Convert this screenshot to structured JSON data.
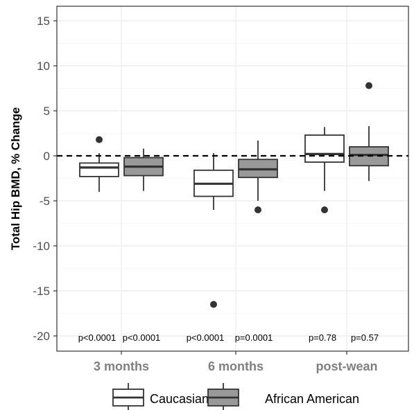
{
  "chart_data": {
    "type": "box",
    "ylabel": "Total Hip BMD, % Change",
    "xlabel": "",
    "ylim": [
      -21.5,
      16.5
    ],
    "yticks": [
      -20,
      -15,
      -10,
      -5,
      0,
      5,
      10,
      15
    ],
    "reference_line": {
      "y": 0,
      "style": "dashed"
    },
    "categories": [
      "3 months",
      "6 months",
      "post-wean"
    ],
    "series": [
      {
        "name": "Caucasian",
        "fill": "#ffffff"
      },
      {
        "name": "African American",
        "fill": "#999999"
      }
    ],
    "boxes": [
      {
        "category": "3 months",
        "series": "Caucasian",
        "whisker_low": -4.0,
        "q1": -2.3,
        "median": -1.3,
        "q3": -0.8,
        "whisker_high": 0.3,
        "outliers": [
          1.8
        ]
      },
      {
        "category": "3 months",
        "series": "African American",
        "whisker_low": -3.9,
        "q1": -2.2,
        "median": -1.2,
        "q3": -0.2,
        "whisker_high": 0.8,
        "outliers": []
      },
      {
        "category": "6 months",
        "series": "Caucasian",
        "whisker_low": -6.0,
        "q1": -4.5,
        "median": -3.1,
        "q3": -1.6,
        "whisker_high": 0.3,
        "outliers": [
          -16.5
        ]
      },
      {
        "category": "6 months",
        "series": "African American",
        "whisker_low": -5.0,
        "q1": -2.4,
        "median": -1.5,
        "q3": -0.4,
        "whisker_high": 1.7,
        "outliers": [
          -6.0
        ]
      },
      {
        "category": "post-wean",
        "series": "Caucasian",
        "whisker_low": -3.9,
        "q1": -0.7,
        "median": 0.2,
        "q3": 2.3,
        "whisker_high": 3.2,
        "outliers": [
          -6.0
        ]
      },
      {
        "category": "post-wean",
        "series": "African American",
        "whisker_low": -2.8,
        "q1": -1.1,
        "median": 0.1,
        "q3": 1.0,
        "whisker_high": 3.3,
        "outliers": [
          7.8
        ]
      }
    ],
    "annotations": [
      "p<0.0001",
      "p<0.0001",
      "p<0.0001",
      "p=0.0001",
      "p=0.78",
      "p=0.57"
    ],
    "legend_position": "bottom",
    "grid": true
  }
}
